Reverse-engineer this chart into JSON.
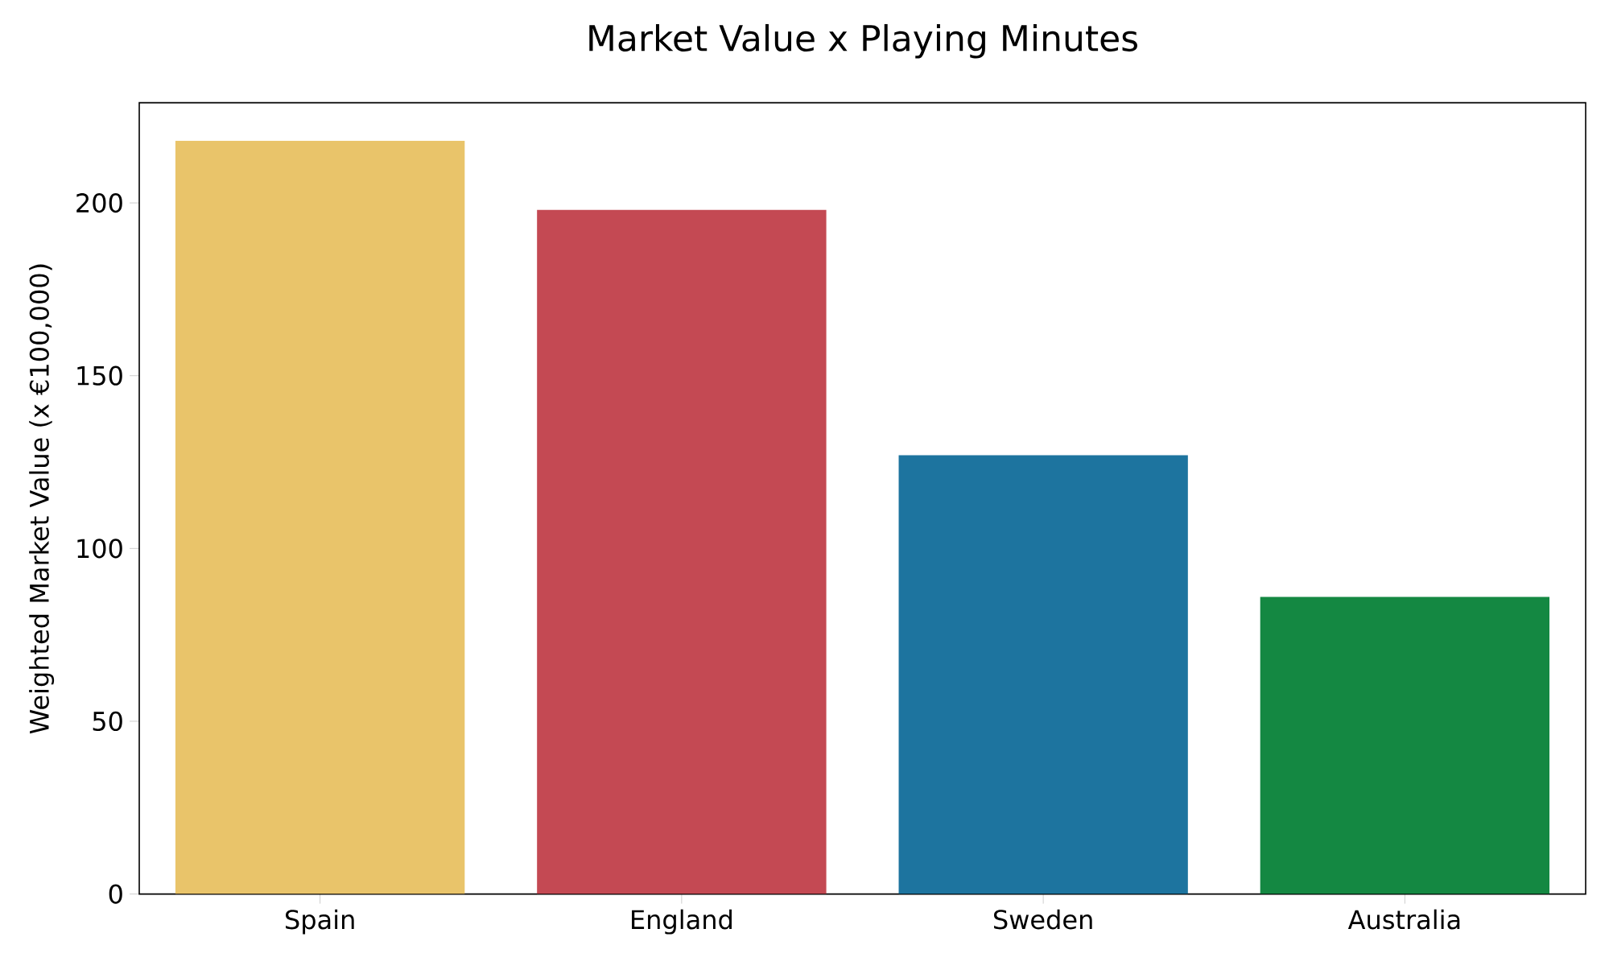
{
  "chart_data": {
    "type": "bar",
    "title": "Market Value x Playing Minutes",
    "ylabel": "Weighted Market Value (x €100,000)",
    "categories": [
      "Spain",
      "England",
      "Sweden",
      "Australia"
    ],
    "values": [
      218,
      198,
      127,
      86
    ],
    "colors": [
      "#e9c46a",
      "#c44953",
      "#1d749f",
      "#148842"
    ],
    "ylim": [
      0,
      229
    ],
    "yticks": [
      0,
      50,
      100,
      150,
      200
    ],
    "grid": false
  }
}
